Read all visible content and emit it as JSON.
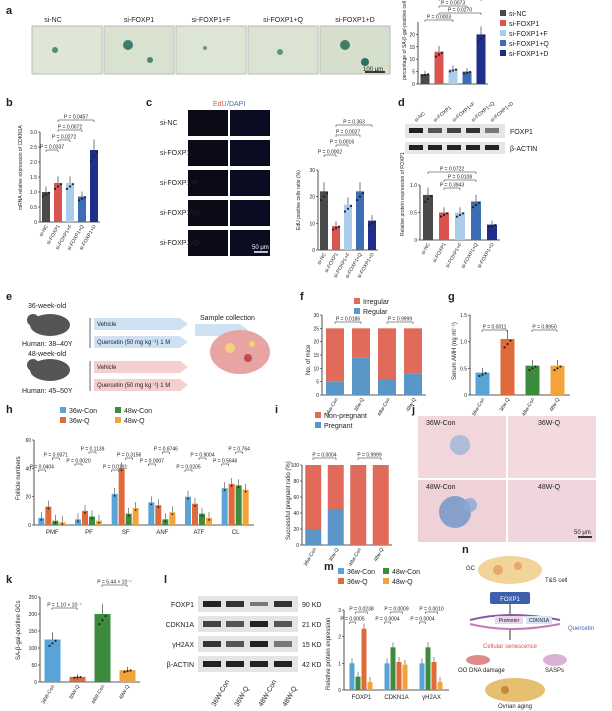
{
  "panels": {
    "a": "a",
    "b": "b",
    "c": "c",
    "d": "d",
    "e": "e",
    "f": "f",
    "g": "g",
    "h": "h",
    "i": "i",
    "j": "j",
    "k": "k",
    "l": "l",
    "m": "m",
    "n": "n"
  },
  "colors": {
    "si_nc": "#4a4a4a",
    "si_foxp1": "#d9534f",
    "f": "#a9cdea",
    "q": "#3d6db5",
    "d": "#1f2e8c",
    "con36": "#5aa3d6",
    "q36": "#e06a3a",
    "con48": "#3d8b3d",
    "q48": "#f2a33a",
    "irregular": "#e06b5a",
    "regular": "#5a96c8"
  },
  "a": {
    "images": [
      "si-NC",
      "si-FOXP1",
      "si-FOXP1+F",
      "si-FOXP1+Q",
      "si-FOXP1+D"
    ],
    "scale": "100 μm",
    "legend": [
      "si-NC",
      "si-FOXP1",
      "si-FOXP1+F",
      "si-FOXP1+Q",
      "si-FOXP1+D"
    ],
    "pvals": [
      "P = 0.0003",
      "P = 0.0270",
      "P = 0.0073",
      "P = 0.054"
    ],
    "ylabel": "percentage of SA-β-gal-positive cell",
    "ticks": [
      "0",
      "5",
      "10",
      "15",
      "20"
    ]
  },
  "b": {
    "ylabel": "mRNA relative expression of CDKN1A",
    "pvals": [
      "P = 0.0337",
      "P = 0.0272",
      "P = 0.0072",
      "P = 0.0457"
    ],
    "ticks": [
      "0",
      "0.5",
      "1.0",
      "1.5",
      "2.0",
      "2.5",
      "3.0"
    ],
    "cats": [
      "si-NC",
      "si-FOXP1",
      "si-FOXP1+F",
      "si-FOXP1+Q",
      "si-FOXP1+D"
    ]
  },
  "c": {
    "title_edu": "EdU",
    "title_dapi": "/DAPI",
    "rows": [
      "si-NC",
      "si-FOXP1",
      "si-FOXP1+F",
      "si-FOXP1+Q",
      "si-FOXP1+D"
    ],
    "scale": "50 μm",
    "ylabel": "EdU positive cells ratio (%)",
    "pvals": [
      "P = 0.0002",
      "P = 0.0016",
      "P = 0.0027",
      "P = 0.363"
    ],
    "ticks": [
      "0",
      "10",
      "20",
      "30"
    ],
    "cats": [
      "si-NC",
      "si-FOXP1",
      "si-FOXP1+F",
      "si-FOXP1+Q",
      "si-FOXP1+D"
    ]
  },
  "d": {
    "lanes": [
      "si-NC",
      "si-FOXP1",
      "si-FOXP1+F",
      "si-FOXP1+Q",
      "si-FOXP1+D"
    ],
    "bands": [
      "FOXP1",
      "β-ACTIN"
    ],
    "ylabel": "Relative protein expression of FOXP1",
    "pvals": [
      "P = 0.0722",
      "P = 0.0108",
      "P = 0.3943"
    ],
    "ticks": [
      "0",
      "0.5",
      "1.0"
    ],
    "cats": [
      "si-NC",
      "si-FOXP1",
      "si-FOXP1+F",
      "si-FOXP1+Q",
      "si-FOXP1+D"
    ]
  },
  "e": {
    "mouse1": "36-week-old",
    "human1": "Human: 38–40Y",
    "mouse2": "48-week-old",
    "human2": "Human: 45–50Y",
    "vehicle": "Vehicle",
    "quercetin": "Quercetin (50 mg kg⁻¹) 1 M",
    "sample": "Sample collection"
  },
  "f": {
    "ylabel": "No. of mice",
    "legend": [
      "Irregular",
      "Regular"
    ],
    "pvals": [
      "P = 0.0186",
      "P = 0.9999"
    ],
    "ticks": [
      "0",
      "5",
      "10",
      "15",
      "20",
      "25",
      "30"
    ],
    "cats": [
      "36w-Con",
      "36w-Q",
      "48w-Con",
      "48w-Q"
    ]
  },
  "g": {
    "ylabel": "Serum AMH (ng ml⁻¹)",
    "pvals": [
      "P = 0.0011",
      "P = 0.8950"
    ],
    "ticks": [
      "0",
      "0.5",
      "1.0",
      "1.5"
    ],
    "cats": [
      "36w-Con",
      "36w-Q",
      "48w-Con",
      "48w-Q"
    ]
  },
  "h": {
    "ylabel": "Follicle numbers",
    "legend": [
      "36w-Con",
      "36w-Q",
      "48w-Con",
      "48w-Q"
    ],
    "groups": [
      "PMF",
      "PF",
      "SF",
      "ANF",
      "ATF",
      "CL"
    ],
    "pvals": [
      "P = 0.0404",
      "P = 0.9371",
      "P = 0.0020",
      "P = 0.1139",
      "P = 0.0191",
      "P = 0.3156",
      "P = 0.0007",
      "P = 0.8746",
      "P = 0.0205",
      "P = 0.9004",
      "P = 0.5646",
      "P = 0.764"
    ],
    "ticks": [
      "0",
      "20",
      "40",
      "60"
    ]
  },
  "i": {
    "ylabel": "Successful pregnant ratio (%)",
    "legend": [
      "Non-pregnant",
      "Pregnant"
    ],
    "pvals": [
      "P = 0.0004",
      "P = 0.9999"
    ],
    "ticks": [
      "0",
      "20",
      "40",
      "60",
      "80",
      "100"
    ],
    "cats": [
      "36w-Con",
      "36w-Q",
      "48w-Con",
      "48w-Q"
    ]
  },
  "j": {
    "labels": [
      "36W-Con",
      "36W-Q",
      "48W-Con",
      "48W-Q"
    ],
    "scale": "50 μm"
  },
  "k": {
    "ylabel": "SA-β-gal-positive GCs",
    "p1": "P = 1.10 × 10⁻⁷",
    "p2": "P = 5.44 × 10⁻⁷",
    "ticks": [
      "0",
      "50",
      "100",
      "150",
      "200",
      "250"
    ],
    "cats": [
      "36W-Con",
      "36W-Q",
      "48W-Con",
      "48W-Q"
    ]
  },
  "l": {
    "bands": [
      "FOXP1",
      "CDKN1A",
      "γH2AX",
      "β-ACTIN"
    ],
    "kd": [
      "90 KD",
      "21 KD",
      "15 KD",
      "42 KD"
    ],
    "lanes": [
      "36W-Con",
      "36W-Q",
      "48W-Con",
      "48W-Q"
    ]
  },
  "m": {
    "ylabel": "Relative protein expression",
    "legend": [
      "36w-Con",
      "48w-Con",
      "36w-Q",
      "48w-Q"
    ],
    "groups": [
      "FOXP1",
      "CDKN1A",
      "γH2AX"
    ],
    "pvals": [
      "P = 0.0005",
      "P = 0.0238",
      "P = 0.0004",
      "P = 0.0009",
      "P = 0.0004",
      "P = 0.0010"
    ],
    "ticks": [
      "0",
      "1",
      "2",
      "3"
    ]
  },
  "n": {
    "gc": "GC",
    "tsc": "T&S cell",
    "foxp1": "FOXP1",
    "promoter": "Promoter",
    "cdkn1a": "CDKN1A",
    "quercetin": "Quercetin",
    "senescence": "Cellular senescence",
    "sasps": "SASPs",
    "damage": "OO DNA damage",
    "aging": "Ovrian aging"
  },
  "chart_data": [
    {
      "panel": "a",
      "type": "bar",
      "categories": [
        "si-NC",
        "si-FOXP1",
        "si-FOXP1+F",
        "si-FOXP1+Q",
        "si-FOXP1+D"
      ],
      "values": [
        4,
        13,
        6,
        5,
        20
      ],
      "ylim": [
        0,
        25
      ]
    },
    {
      "panel": "b",
      "type": "bar",
      "categories": [
        "si-NC",
        "si-FOXP1",
        "si-FOXP1+F",
        "si-FOXP1+Q",
        "si-FOXP1+D"
      ],
      "values": [
        1.0,
        1.3,
        1.3,
        0.85,
        2.4
      ],
      "ylim": [
        0,
        3
      ]
    },
    {
      "panel": "c",
      "type": "bar",
      "categories": [
        "si-NC",
        "si-FOXP1",
        "si-FOXP1+F",
        "si-FOXP1+Q",
        "si-FOXP1+D"
      ],
      "values": [
        22,
        9,
        17,
        22,
        11
      ],
      "ylim": [
        0,
        30
      ]
    },
    {
      "panel": "d",
      "type": "bar",
      "categories": [
        "si-NC",
        "si-FOXP1",
        "si-FOXP1+F",
        "si-FOXP1+Q",
        "si-FOXP1+D"
      ],
      "values": [
        0.82,
        0.5,
        0.5,
        0.7,
        0.28
      ],
      "ylim": [
        0,
        1.0
      ]
    },
    {
      "panel": "f",
      "type": "bar",
      "categories": [
        "36w-Con",
        "36w-Q",
        "48w-Con",
        "48w-Q"
      ],
      "series": [
        {
          "name": "Regular",
          "values": [
            5,
            14,
            6,
            8
          ]
        },
        {
          "name": "Irregular",
          "values": [
            20,
            11,
            19,
            17
          ]
        }
      ],
      "ylim": [
        0,
        30
      ]
    },
    {
      "panel": "g",
      "type": "bar",
      "categories": [
        "36w-Con",
        "36w-Q",
        "48w-Con",
        "48w-Q"
      ],
      "values": [
        0.42,
        1.05,
        0.55,
        0.55
      ],
      "ylim": [
        0,
        1.5
      ]
    },
    {
      "panel": "h",
      "type": "bar",
      "categories": [
        "PMF",
        "PF",
        "SF",
        "ANF",
        "ATF",
        "CL"
      ],
      "series": [
        {
          "name": "36w-Con",
          "values": [
            5,
            4,
            22,
            16,
            20,
            26
          ]
        },
        {
          "name": "36w-Q",
          "values": [
            13,
            10,
            40,
            14,
            15,
            29
          ]
        },
        {
          "name": "48w-Con",
          "values": [
            3,
            6,
            8,
            4,
            8,
            28
          ]
        },
        {
          "name": "48w-Q",
          "values": [
            2,
            3,
            12,
            9,
            5,
            25
          ]
        }
      ],
      "ylim": [
        0,
        60
      ]
    },
    {
      "panel": "i",
      "type": "bar",
      "categories": [
        "36w-Con",
        "36w-Q",
        "48w-Con",
        "48w-Q"
      ],
      "series": [
        {
          "name": "Pregnant",
          "values": [
            20,
            45,
            0,
            0
          ]
        },
        {
          "name": "Non-pregnant",
          "values": [
            80,
            55,
            100,
            100
          ]
        }
      ],
      "ylim": [
        0,
        100
      ]
    },
    {
      "panel": "k",
      "type": "bar",
      "categories": [
        "36W-Con",
        "36W-Q",
        "48W-Con",
        "48W-Q"
      ],
      "values": [
        125,
        15,
        200,
        35
      ],
      "ylim": [
        0,
        250
      ]
    },
    {
      "panel": "m",
      "type": "bar",
      "categories": [
        "FOXP1",
        "CDKN1A",
        "γH2AX"
      ],
      "series": [
        {
          "name": "36w-Con",
          "values": [
            1.0,
            1.0,
            1.0
          ]
        },
        {
          "name": "48w-Con",
          "values": [
            0.5,
            1.6,
            1.6
          ]
        },
        {
          "name": "36w-Q",
          "values": [
            2.3,
            1.05,
            1.05
          ]
        },
        {
          "name": "48w-Q",
          "values": [
            0.3,
            0.95,
            0.3
          ]
        }
      ],
      "ylim": [
        0,
        3
      ]
    }
  ]
}
